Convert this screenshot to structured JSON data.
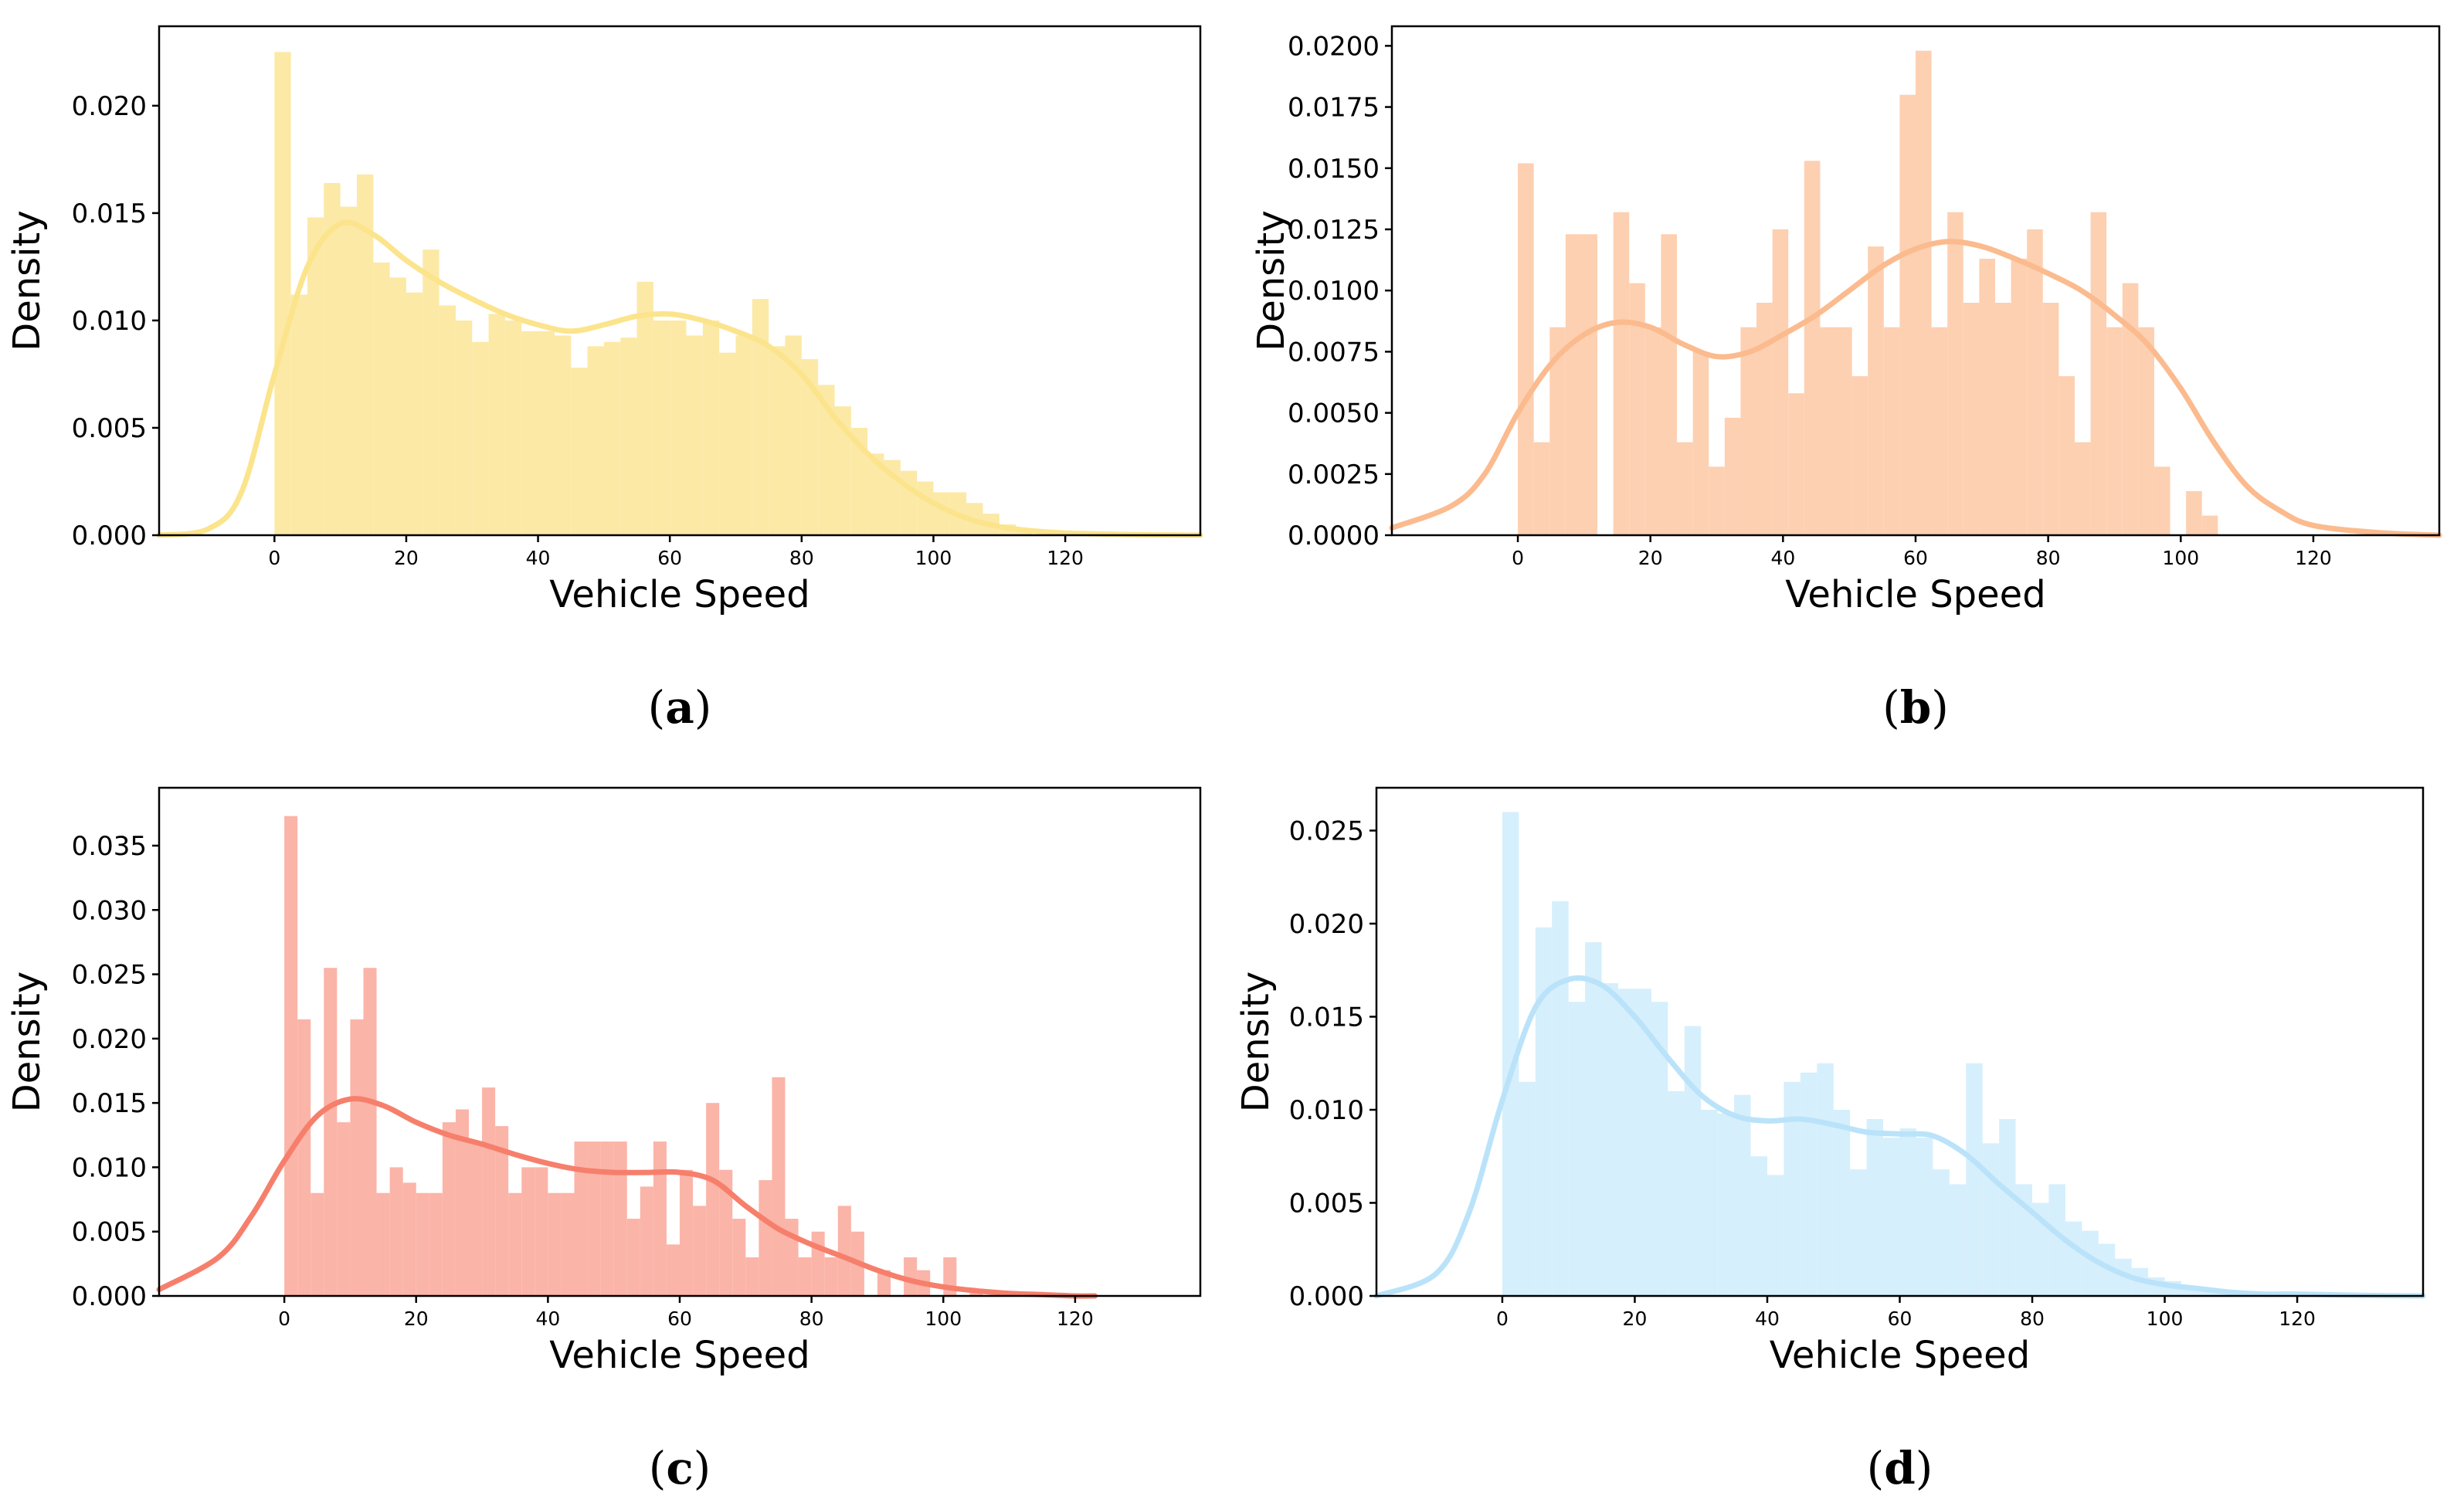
{
  "figure_title": "",
  "chart_data": [
    {
      "panel": "(a)",
      "caption_letter": "a",
      "type": "bar",
      "title": "",
      "xlabel": "Vehicle Speed",
      "ylabel": "Density",
      "xlim": [
        -17.5,
        140.5
      ],
      "ylim": [
        0,
        0.0237
      ],
      "xticks": [
        0,
        20,
        40,
        60,
        80,
        100,
        120
      ],
      "xtick_labels": [
        "0",
        "20",
        "40",
        "60",
        "80",
        "100",
        "120"
      ],
      "yticks": [
        0,
        0.005,
        0.01,
        0.015,
        0.02
      ],
      "ytick_labels": [
        "0.000",
        "0.005",
        "0.010",
        "0.015",
        "0.020"
      ],
      "color": "#FCE9A6",
      "kde_color": "#FBE48C",
      "bin_start": 0,
      "bin_width": 2.5,
      "hist_values": [
        0.0225,
        0.0112,
        0.0148,
        0.0164,
        0.0153,
        0.0168,
        0.0127,
        0.012,
        0.0113,
        0.0133,
        0.0107,
        0.01,
        0.009,
        0.0103,
        0.01,
        0.0095,
        0.0095,
        0.0093,
        0.0078,
        0.0088,
        0.009,
        0.0092,
        0.0118,
        0.01,
        0.01,
        0.0093,
        0.01,
        0.0085,
        0.0093,
        0.011,
        0.0088,
        0.0093,
        0.0082,
        0.007,
        0.006,
        0.005,
        0.0038,
        0.0035,
        0.003,
        0.0025,
        0.002,
        0.002,
        0.0015,
        0.001,
        0.0005,
        0.0003
      ],
      "kde_x": [
        -17.5,
        -10,
        -5,
        0,
        5,
        10,
        15,
        20,
        25,
        30,
        35,
        40,
        45,
        50,
        55,
        60,
        65,
        70,
        75,
        80,
        85,
        90,
        95,
        100,
        105,
        110,
        115,
        120,
        130,
        140.5
      ],
      "kde_y": [
        0.0,
        0.0003,
        0.002,
        0.0075,
        0.0125,
        0.0145,
        0.014,
        0.0128,
        0.0118,
        0.011,
        0.0103,
        0.0098,
        0.0095,
        0.0098,
        0.0102,
        0.0103,
        0.01,
        0.0095,
        0.0088,
        0.0075,
        0.0055,
        0.0038,
        0.0025,
        0.0015,
        0.0008,
        0.0004,
        0.0002,
        0.0001,
        3e-05,
        0.0
      ]
    },
    {
      "panel": "(b)",
      "caption_letter": "b",
      "type": "bar",
      "title": "",
      "xlabel": "Vehicle Speed",
      "ylabel": "Density",
      "xlim": [
        -19,
        139
      ],
      "ylim": [
        0,
        0.0208
      ],
      "xticks": [
        0,
        20,
        40,
        60,
        80,
        100,
        120
      ],
      "xtick_labels": [
        "0",
        "20",
        "40",
        "60",
        "80",
        "100",
        "120"
      ],
      "yticks": [
        0,
        0.0025,
        0.005,
        0.0075,
        0.01,
        0.0125,
        0.015,
        0.0175,
        0.02
      ],
      "ytick_labels": [
        "0.0000",
        "0.0025",
        "0.0050",
        "0.0075",
        "0.0100",
        "0.0125",
        "0.0150",
        "0.0175",
        "0.0200"
      ],
      "color": "#FDD0B1",
      "kde_color": "#FBBB8E",
      "bin_start": 0,
      "bin_width": 2.4,
      "hist_values": [
        0.0152,
        0.0038,
        0.0085,
        0.0123,
        0.0123,
        0.0,
        0.0132,
        0.0103,
        0.0085,
        0.0123,
        0.0038,
        0.0075,
        0.0028,
        0.0048,
        0.0085,
        0.0095,
        0.0125,
        0.0058,
        0.0153,
        0.0085,
        0.0085,
        0.0065,
        0.0118,
        0.0085,
        0.018,
        0.0198,
        0.0085,
        0.0132,
        0.0095,
        0.0113,
        0.0095,
        0.0113,
        0.0125,
        0.0095,
        0.0065,
        0.0038,
        0.0132,
        0.0085,
        0.0103,
        0.0085,
        0.0028,
        0.0,
        0.0018,
        0.0008
      ],
      "kde_x": [
        -19,
        -10,
        -5,
        0,
        5,
        10,
        15,
        20,
        25,
        30,
        35,
        40,
        45,
        50,
        55,
        60,
        65,
        70,
        75,
        80,
        85,
        90,
        95,
        100,
        105,
        110,
        115,
        120,
        130,
        139
      ],
      "kde_y": [
        0.0003,
        0.0012,
        0.0025,
        0.005,
        0.007,
        0.0082,
        0.0087,
        0.0085,
        0.0078,
        0.0073,
        0.0075,
        0.0082,
        0.009,
        0.01,
        0.011,
        0.0117,
        0.012,
        0.0118,
        0.0113,
        0.0107,
        0.01,
        0.009,
        0.0078,
        0.006,
        0.0038,
        0.002,
        0.001,
        0.0004,
        0.0001,
        0.0
      ]
    },
    {
      "panel": "(c)",
      "caption_letter": "c",
      "type": "bar",
      "title": "",
      "xlabel": "Vehicle Speed",
      "ylabel": "Density",
      "xlim": [
        -19,
        139
      ],
      "ylim": [
        0,
        0.0395
      ],
      "xticks": [
        0,
        20,
        40,
        60,
        80,
        100,
        120
      ],
      "xtick_labels": [
        "0",
        "20",
        "40",
        "60",
        "80",
        "100",
        "120"
      ],
      "yticks": [
        0,
        0.005,
        0.01,
        0.015,
        0.02,
        0.025,
        0.03,
        0.035
      ],
      "ytick_labels": [
        "0.000",
        "0.005",
        "0.010",
        "0.015",
        "0.020",
        "0.025",
        "0.030",
        "0.035"
      ],
      "color": "#FBB4A8",
      "kde_color": "#F67F6C",
      "bin_start": 0,
      "bin_width": 2.0,
      "hist_values": [
        0.0373,
        0.0215,
        0.008,
        0.0255,
        0.0135,
        0.0215,
        0.0255,
        0.008,
        0.01,
        0.0088,
        0.008,
        0.008,
        0.0135,
        0.0145,
        0.012,
        0.0162,
        0.0132,
        0.008,
        0.01,
        0.01,
        0.008,
        0.008,
        0.012,
        0.012,
        0.012,
        0.012,
        0.006,
        0.0085,
        0.012,
        0.004,
        0.0098,
        0.007,
        0.015,
        0.0098,
        0.006,
        0.003,
        0.009,
        0.017,
        0.006,
        0.003,
        0.005,
        0.003,
        0.007,
        0.005,
        0.0,
        0.002,
        0.0,
        0.003,
        0.002,
        0.0,
        0.003,
        0.0,
        0.0005,
        0.0
      ],
      "kde_x": [
        -19,
        -10,
        -5,
        0,
        5,
        10,
        15,
        20,
        25,
        30,
        35,
        40,
        45,
        50,
        55,
        60,
        65,
        70,
        75,
        80,
        85,
        90,
        95,
        100,
        105,
        110,
        115,
        120,
        123
      ],
      "kde_y": [
        0.0005,
        0.003,
        0.0062,
        0.0105,
        0.014,
        0.0153,
        0.0148,
        0.0135,
        0.0125,
        0.0118,
        0.011,
        0.0103,
        0.0098,
        0.0096,
        0.0096,
        0.0096,
        0.009,
        0.007,
        0.0052,
        0.004,
        0.003,
        0.002,
        0.0012,
        0.0007,
        0.0004,
        0.0002,
        0.0001,
        0.0,
        0.0
      ]
    },
    {
      "panel": "(d)",
      "caption_letter": "d",
      "type": "bar",
      "title": "",
      "xlabel": "Vehicle Speed",
      "ylabel": "Density",
      "xlim": [
        -19,
        139
      ],
      "ylim": [
        0,
        0.0273
      ],
      "xticks": [
        0,
        20,
        40,
        60,
        80,
        100,
        120
      ],
      "xtick_labels": [
        "0",
        "20",
        "40",
        "60",
        "80",
        "100",
        "120"
      ],
      "yticks": [
        0,
        0.005,
        0.01,
        0.015,
        0.02,
        0.025
      ],
      "ytick_labels": [
        "0.000",
        "0.005",
        "0.010",
        "0.015",
        "0.020",
        "0.025"
      ],
      "color": "#D6EFFC",
      "kde_color": "#BAE3FA",
      "bin_start": 0,
      "bin_width": 2.5,
      "hist_values": [
        0.026,
        0.0115,
        0.0198,
        0.0212,
        0.0158,
        0.019,
        0.0168,
        0.0165,
        0.0165,
        0.0158,
        0.011,
        0.0145,
        0.01,
        0.0098,
        0.0108,
        0.0075,
        0.0065,
        0.0115,
        0.012,
        0.0125,
        0.01,
        0.0068,
        0.0095,
        0.0085,
        0.009,
        0.0085,
        0.0068,
        0.006,
        0.0125,
        0.0082,
        0.0095,
        0.006,
        0.005,
        0.006,
        0.004,
        0.0035,
        0.0028,
        0.002,
        0.0015,
        0.001,
        0.0008,
        0.0005,
        0.0004,
        0.0003,
        0.0002,
        0.0002
      ],
      "kde_x": [
        -19,
        -10,
        -5,
        0,
        5,
        10,
        15,
        20,
        25,
        30,
        35,
        40,
        45,
        50,
        55,
        60,
        65,
        70,
        75,
        80,
        85,
        90,
        95,
        100,
        105,
        110,
        115,
        120,
        130,
        139
      ],
      "kde_y": [
        0.0,
        0.0012,
        0.0045,
        0.0105,
        0.0155,
        0.017,
        0.0167,
        0.015,
        0.0128,
        0.0108,
        0.0097,
        0.0094,
        0.0095,
        0.0092,
        0.0088,
        0.0087,
        0.0086,
        0.0076,
        0.006,
        0.0045,
        0.003,
        0.0018,
        0.001,
        0.0006,
        0.0004,
        0.0002,
        0.0001,
        0.0001,
        3e-05,
        0.0
      ]
    }
  ]
}
